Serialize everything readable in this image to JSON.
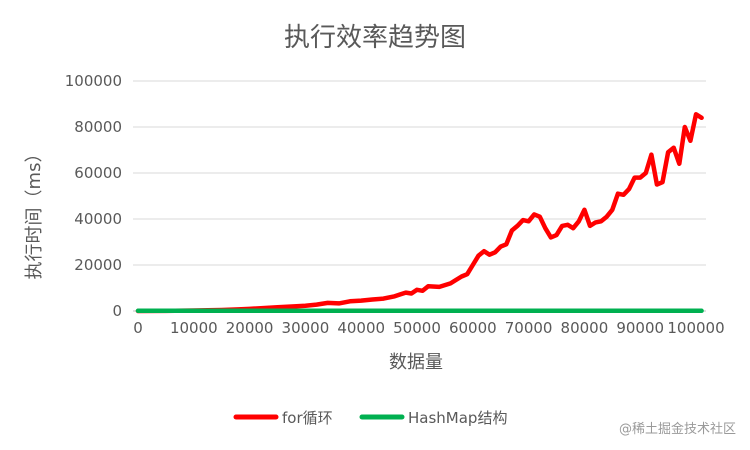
{
  "chart_data": {
    "type": "line",
    "title": "执行效率趋势图",
    "xlabel": "数据量",
    "ylabel": "执行时间（ms）",
    "xlim": [
      0,
      100000
    ],
    "ylim": [
      0,
      100000
    ],
    "x_ticks": [
      "0",
      "10000",
      "20000",
      "30000",
      "40000",
      "50000",
      "60000",
      "70000",
      "80000",
      "90000",
      "100000"
    ],
    "y_ticks": [
      "0",
      "20000",
      "40000",
      "60000",
      "80000",
      "100000"
    ],
    "grid": "horizontal",
    "legend_position": "bottom",
    "series": [
      {
        "name": "for循环",
        "color": "#ff0000",
        "points": [
          [
            0,
            0
          ],
          [
            5000,
            50
          ],
          [
            10000,
            200
          ],
          [
            15000,
            450
          ],
          [
            18000,
            700
          ],
          [
            20000,
            900
          ],
          [
            22000,
            1200
          ],
          [
            25000,
            1600
          ],
          [
            28000,
            2000
          ],
          [
            30000,
            2300
          ],
          [
            32000,
            2800
          ],
          [
            34000,
            3500
          ],
          [
            36000,
            3300
          ],
          [
            38000,
            4200
          ],
          [
            40000,
            4500
          ],
          [
            42000,
            5000
          ],
          [
            44000,
            5400
          ],
          [
            45000,
            5900
          ],
          [
            46000,
            6400
          ],
          [
            47000,
            7200
          ],
          [
            48000,
            8000
          ],
          [
            49000,
            7600
          ],
          [
            50000,
            9200
          ],
          [
            51000,
            8800
          ],
          [
            52000,
            10800
          ],
          [
            54000,
            10500
          ],
          [
            56000,
            12000
          ],
          [
            57000,
            13500
          ],
          [
            58000,
            15000
          ],
          [
            59000,
            16000
          ],
          [
            60000,
            20000
          ],
          [
            61000,
            24000
          ],
          [
            62000,
            26000
          ],
          [
            63000,
            24500
          ],
          [
            64000,
            25500
          ],
          [
            65000,
            28000
          ],
          [
            66000,
            29000
          ],
          [
            67000,
            35000
          ],
          [
            68000,
            37000
          ],
          [
            69000,
            39500
          ],
          [
            70000,
            39000
          ],
          [
            71000,
            42000
          ],
          [
            72000,
            41000
          ],
          [
            73000,
            36000
          ],
          [
            74000,
            32000
          ],
          [
            75000,
            33000
          ],
          [
            76000,
            37000
          ],
          [
            77000,
            37500
          ],
          [
            78000,
            36000
          ],
          [
            79000,
            39000
          ],
          [
            80000,
            44000
          ],
          [
            81000,
            37000
          ],
          [
            82000,
            38500
          ],
          [
            83000,
            39000
          ],
          [
            84000,
            41000
          ],
          [
            85000,
            44000
          ],
          [
            86000,
            51000
          ],
          [
            87000,
            50500
          ],
          [
            88000,
            53000
          ],
          [
            89000,
            58000
          ],
          [
            90000,
            58000
          ],
          [
            91000,
            60000
          ],
          [
            92000,
            68000
          ],
          [
            93000,
            55000
          ],
          [
            94000,
            56000
          ],
          [
            95000,
            69000
          ],
          [
            96000,
            71000
          ],
          [
            97000,
            64000
          ],
          [
            98000,
            80000
          ],
          [
            99000,
            74000
          ],
          [
            100000,
            85500
          ],
          [
            101000,
            84000
          ]
        ]
      },
      {
        "name": "HashMap结构",
        "color": "#00b050",
        "points": [
          [
            0,
            100
          ],
          [
            101000,
            100
          ]
        ]
      }
    ]
  },
  "watermark": "@稀土掘金技术社区"
}
